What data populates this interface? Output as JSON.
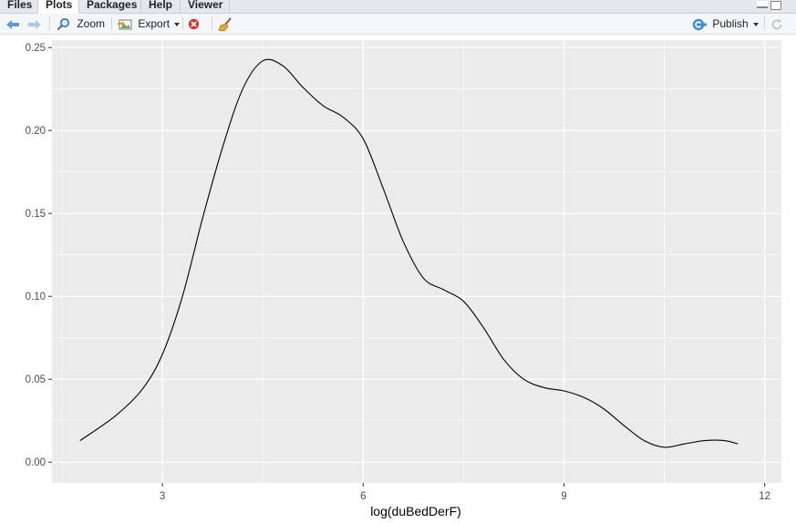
{
  "tabs": [
    {
      "label": "Files",
      "active": false
    },
    {
      "label": "Plots",
      "active": true
    },
    {
      "label": "Packages",
      "active": false
    },
    {
      "label": "Help",
      "active": false
    },
    {
      "label": "Viewer",
      "active": false
    }
  ],
  "toolbar": {
    "zoom_label": "Zoom",
    "export_label": "Export",
    "publish_label": "Publish"
  },
  "colors": {
    "panel_bg": "#ebebeb",
    "grid": "#ffffff",
    "line": "#000000",
    "nav_arrow": "#5a9bd5",
    "remove_icon": "#d9312b",
    "publish_icon": "#3a8fd6"
  },
  "chart_data": {
    "type": "line",
    "title": "",
    "xlabel": "log(duBedDerF)",
    "ylabel": "",
    "xlim": [
      1.35,
      12.25
    ],
    "ylim": [
      -0.0125,
      0.2545
    ],
    "x_ticks": [
      3,
      6,
      9,
      12
    ],
    "x_tick_labels": [
      "3",
      "6",
      "9",
      "12"
    ],
    "y_ticks": [
      0,
      0.05,
      0.1,
      0.15,
      0.2,
      0.25
    ],
    "y_tick_labels": [
      "0.00",
      "0.05",
      "0.10",
      "0.15",
      "0.20",
      "0.25"
    ],
    "grid": true,
    "series": [
      {
        "x": [
          1.77,
          2.3,
          2.7,
          3.0,
          3.3,
          3.6,
          3.9,
          4.2,
          4.5,
          4.8,
          5.1,
          5.4,
          5.7,
          6.0,
          6.3,
          6.6,
          6.9,
          7.2,
          7.5,
          7.8,
          8.1,
          8.4,
          8.7,
          9.0,
          9.3,
          9.6,
          9.9,
          10.2,
          10.5,
          10.8,
          11.1,
          11.4,
          11.6
        ],
        "y": [
          0.013,
          0.028,
          0.044,
          0.065,
          0.1,
          0.147,
          0.19,
          0.225,
          0.242,
          0.239,
          0.226,
          0.215,
          0.208,
          0.195,
          0.165,
          0.133,
          0.111,
          0.104,
          0.097,
          0.081,
          0.062,
          0.05,
          0.045,
          0.043,
          0.039,
          0.032,
          0.022,
          0.013,
          0.009,
          0.011,
          0.013,
          0.013,
          0.011
        ]
      }
    ]
  }
}
